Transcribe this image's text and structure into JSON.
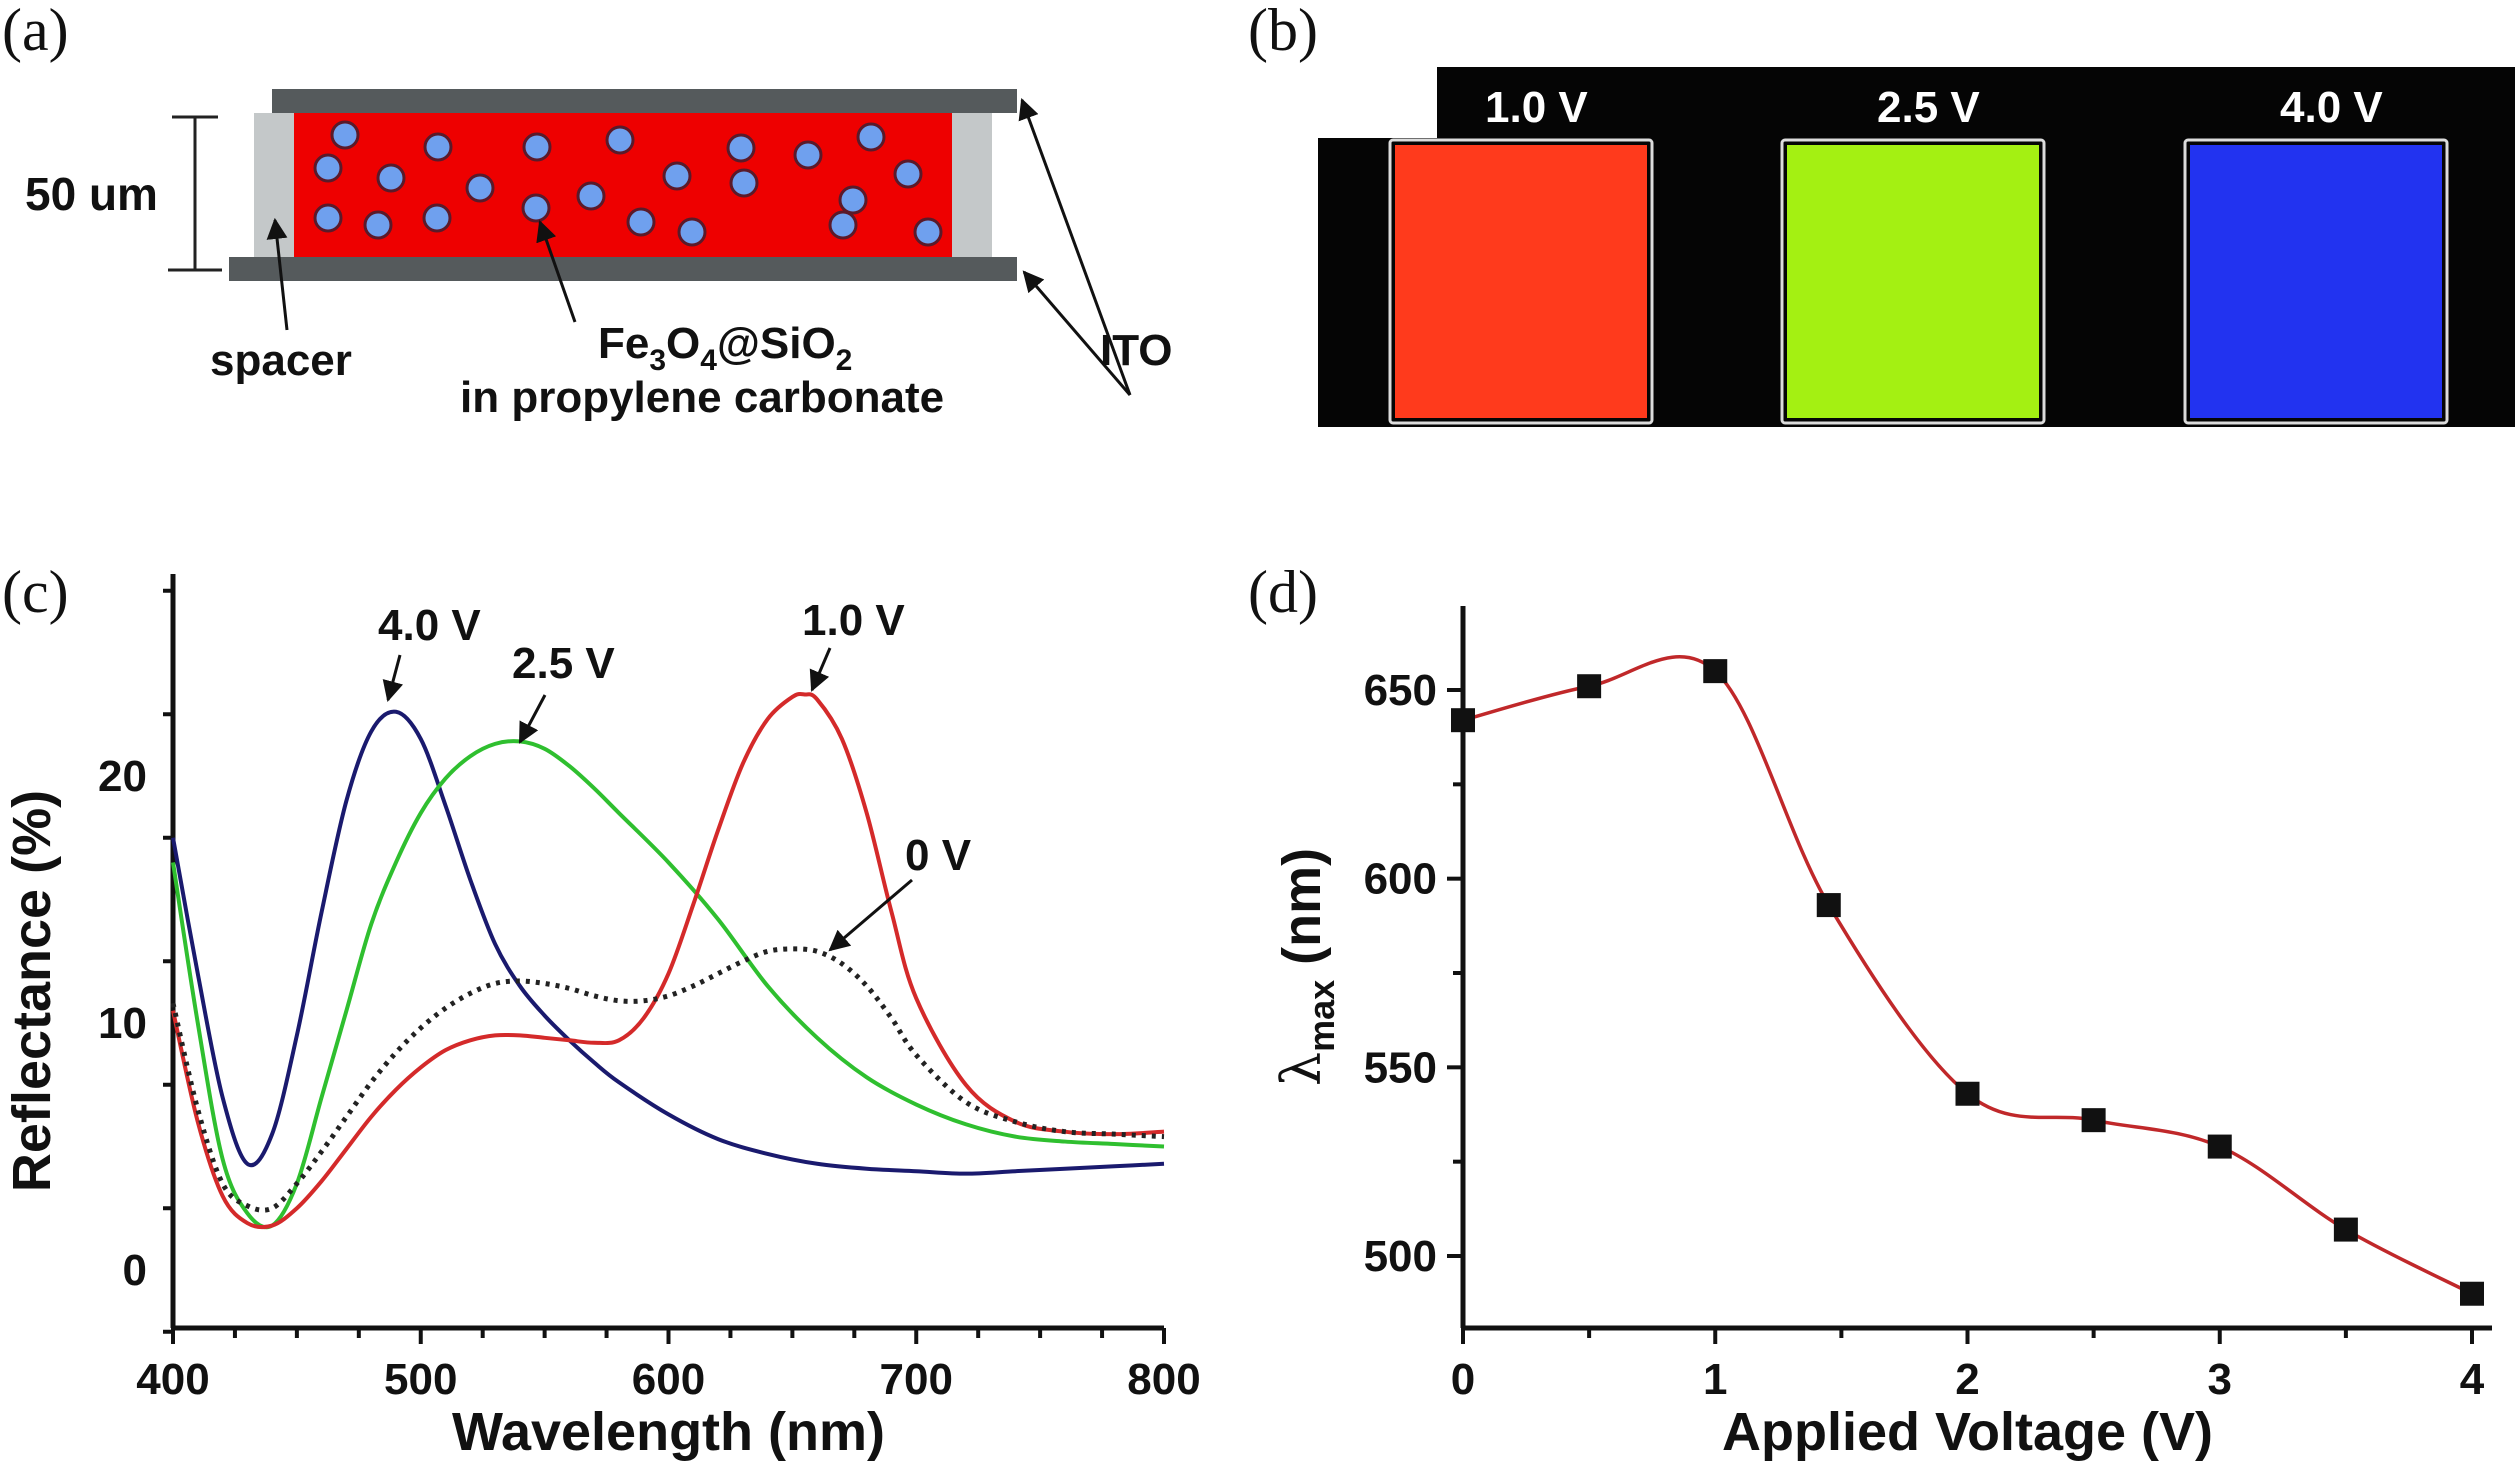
{
  "panels": {
    "a": {
      "label": "(a)",
      "thickness": "50 um",
      "spacer_label": "spacer",
      "particle_label_main": "Fe",
      "particle_label_parts": [
        "Fe",
        "3",
        "O",
        "4",
        "@SiO",
        "2"
      ],
      "medium_label": "in propylene carbonate",
      "electrode_label": "ITO",
      "colors": {
        "fluid": "#ee0000",
        "particle": "#6fa0ee",
        "electrode": "#555a5c",
        "spacer": "#c4c8c9"
      }
    },
    "b": {
      "label": "(b)",
      "cells": [
        {
          "voltage": "1.0 V",
          "color": "#ff3a1c"
        },
        {
          "voltage": "2.5 V",
          "color": "#a4f012"
        },
        {
          "voltage": "4.0 V",
          "color": "#2233f0"
        }
      ]
    },
    "c": {
      "label": "(c)"
    },
    "d": {
      "label": "(d)"
    }
  },
  "chart_data": [
    {
      "type": "line",
      "panel": "c",
      "title": "",
      "xlabel": "Wavelength (nm)",
      "ylabel": "Reflectance (%)",
      "xlim": [
        400,
        800
      ],
      "ylim": [
        -2.5,
        28
      ],
      "xticks": [
        400,
        500,
        600,
        700,
        800
      ],
      "yticks": [
        0,
        10,
        20
      ],
      "grid": false,
      "series": [
        {
          "name": "4.0 V",
          "color": "#1a1a6e",
          "dashed": false,
          "x": [
            400,
            410,
            420,
            430,
            440,
            450,
            460,
            470,
            480,
            490,
            500,
            510,
            520,
            530,
            540,
            550,
            560,
            570,
            580,
            600,
            620,
            640,
            660,
            680,
            700,
            720,
            740,
            760,
            780,
            800
          ],
          "y": [
            17.5,
            12,
            7,
            4.3,
            5.5,
            9.5,
            14.5,
            19,
            21.8,
            22.6,
            21.5,
            18.8,
            15.8,
            13.2,
            11.5,
            10.3,
            9.3,
            8.4,
            7.6,
            6.3,
            5.3,
            4.7,
            4.3,
            4.1,
            4.0,
            3.9,
            4.0,
            4.1,
            4.2,
            4.3
          ]
        },
        {
          "name": "2.5 V",
          "color": "#2fbf2f",
          "dashed": false,
          "x": [
            400,
            410,
            420,
            430,
            440,
            450,
            460,
            470,
            480,
            490,
            500,
            510,
            520,
            530,
            540,
            550,
            560,
            570,
            580,
            600,
            620,
            640,
            660,
            680,
            700,
            720,
            740,
            760,
            780,
            800
          ],
          "y": [
            16.5,
            10,
            4.5,
            2.3,
            1.8,
            3.5,
            7,
            10.5,
            14,
            16.5,
            18.5,
            19.9,
            20.8,
            21.3,
            21.4,
            21.1,
            20.4,
            19.5,
            18.5,
            16.5,
            14.2,
            11.5,
            9.4,
            7.8,
            6.7,
            5.9,
            5.4,
            5.2,
            5.1,
            5.0
          ]
        },
        {
          "name": "1.0 V",
          "color": "#d42a2a",
          "dashed": false,
          "x": [
            400,
            410,
            420,
            430,
            440,
            450,
            460,
            470,
            480,
            490,
            500,
            510,
            520,
            530,
            540,
            550,
            560,
            570,
            580,
            590,
            600,
            610,
            620,
            630,
            640,
            650,
            655,
            660,
            670,
            680,
            690,
            700,
            720,
            740,
            760,
            780,
            800
          ],
          "y": [
            10.5,
            6,
            3,
            1.9,
            1.8,
            2.5,
            3.6,
            4.9,
            6.2,
            7.3,
            8.2,
            8.9,
            9.3,
            9.5,
            9.5,
            9.4,
            9.3,
            9.2,
            9.3,
            10.2,
            12,
            14.8,
            17.8,
            20.5,
            22.3,
            23.2,
            23.3,
            23.1,
            21.5,
            18.5,
            14.5,
            11,
            7.5,
            6,
            5.6,
            5.5,
            5.6
          ]
        },
        {
          "name": "0 V",
          "color": "#222222",
          "dashed": true,
          "x": [
            400,
            410,
            420,
            430,
            440,
            450,
            460,
            470,
            480,
            490,
            500,
            510,
            520,
            530,
            540,
            550,
            560,
            570,
            580,
            590,
            600,
            610,
            620,
            630,
            640,
            650,
            660,
            670,
            680,
            690,
            700,
            720,
            740,
            760,
            780,
            800
          ],
          "y": [
            10.8,
            6.5,
            3.5,
            2.6,
            2.5,
            3.5,
            4.8,
            6.2,
            7.6,
            8.8,
            9.8,
            10.6,
            11.2,
            11.6,
            11.7,
            11.6,
            11.4,
            11.1,
            10.9,
            10.9,
            11.1,
            11.5,
            12.0,
            12.5,
            12.9,
            13.0,
            12.9,
            12.4,
            11.5,
            10.2,
            8.7,
            6.8,
            6.0,
            5.6,
            5.5,
            5.4
          ]
        }
      ],
      "annotations": [
        {
          "text": "4.0 V",
          "series": "4.0 V"
        },
        {
          "text": "2.5 V",
          "series": "2.5 V"
        },
        {
          "text": "1.0 V",
          "series": "1.0 V"
        },
        {
          "text": "0 V",
          "series": "0 V"
        }
      ]
    },
    {
      "type": "line",
      "panel": "d",
      "title": "",
      "xlabel": "Applied Voltage (V)",
      "ylabel": "λmax (nm)",
      "ylabel_main": "λ",
      "ylabel_sub": "max",
      "ylabel_unit": " (nm)",
      "xlim": [
        0,
        4
      ],
      "ylim": [
        480,
        668
      ],
      "xticks": [
        0,
        1,
        2,
        3,
        4
      ],
      "yticks": [
        500,
        550,
        600,
        650
      ],
      "grid": false,
      "series": [
        {
          "name": "λmax",
          "color": "#c0282a",
          "marker": "square",
          "marker_color": "#111111",
          "x": [
            0,
            0.5,
            1.0,
            1.45,
            2.0,
            2.5,
            3.0,
            3.5,
            4.0
          ],
          "y": [
            642,
            651,
            655,
            593,
            543,
            536,
            529,
            507,
            490
          ]
        }
      ]
    }
  ]
}
